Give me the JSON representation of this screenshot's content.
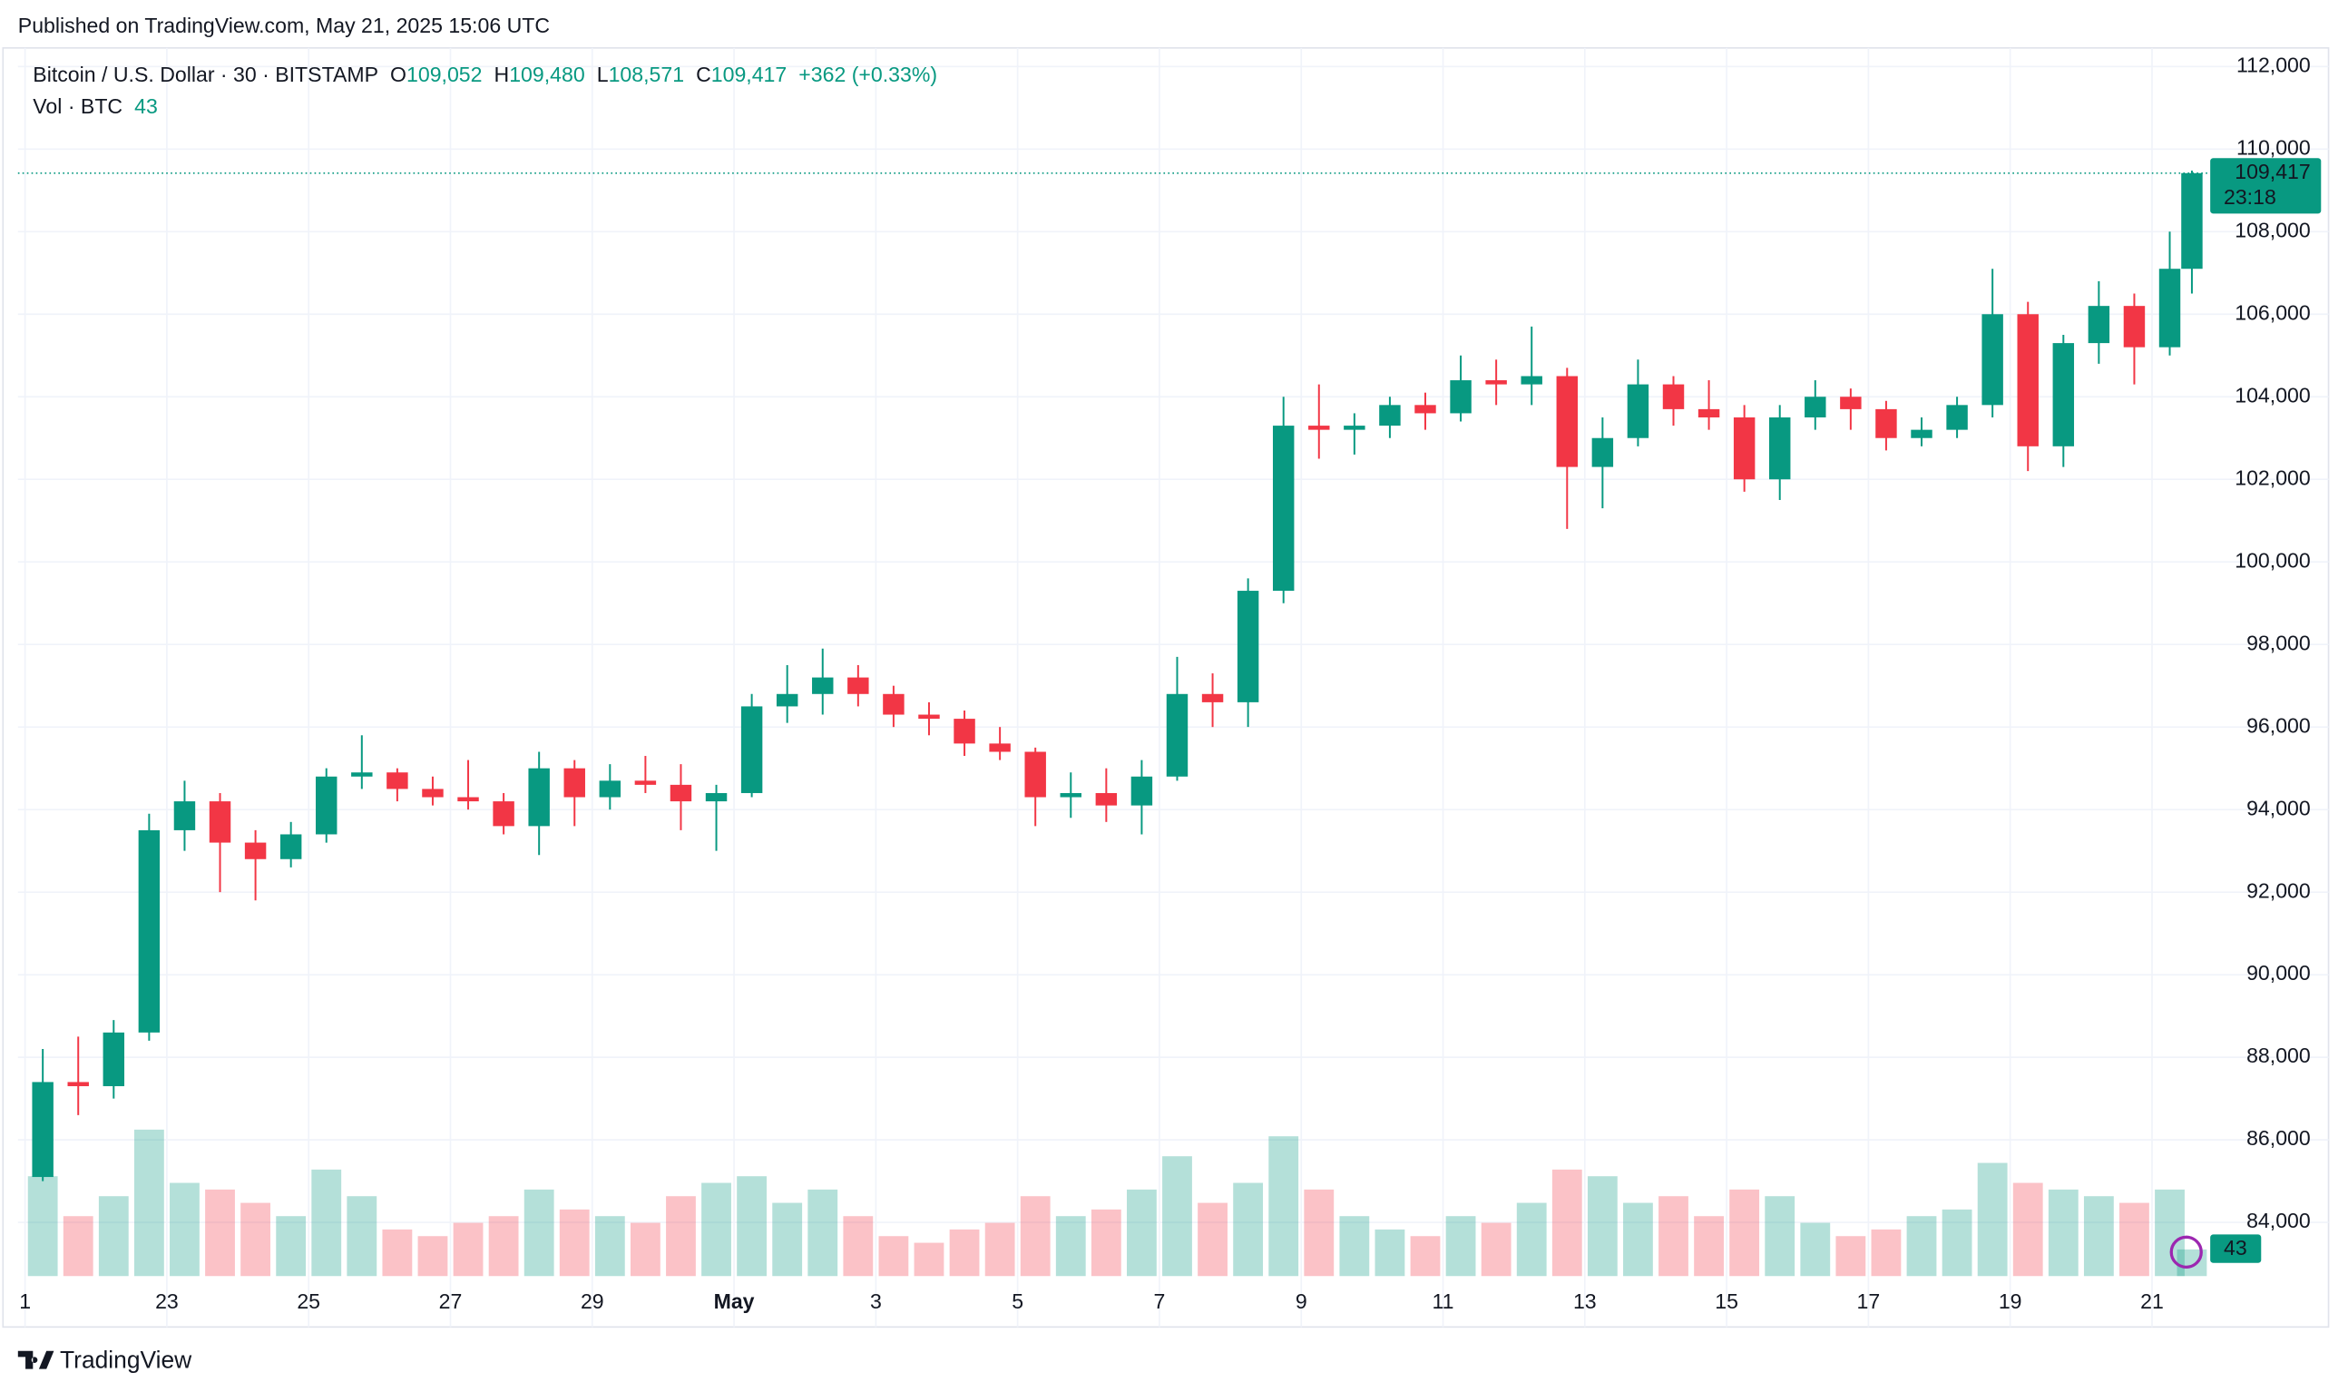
{
  "header": {
    "published": "Published on TradingView.com, May 21, 2025 15:06 UTC"
  },
  "legend": {
    "symbol": "Bitcoin / U.S. Dollar · 30 · BITSTAMP",
    "o_label": "O",
    "open": "109,052",
    "h_label": "H",
    "high": "109,480",
    "l_label": "L",
    "low": "108,571",
    "c_label": "C",
    "close": "109,417",
    "change": "+362 (+0.33%)",
    "vol_label": "Vol · BTC",
    "vol": "43"
  },
  "price_tag": {
    "countdown": "23:18"
  },
  "footer": {
    "brand": "TradingView"
  },
  "chart_data": {
    "type": "candlestick",
    "x": [
      0.25,
      0.75,
      1.25,
      1.75,
      2.25,
      2.75,
      3.25,
      3.75,
      4.25,
      4.75,
      5.25,
      5.75,
      6.25,
      6.75,
      7.25,
      7.75,
      8.25,
      8.75,
      9.25,
      9.75,
      10.25,
      10.75,
      11.25,
      11.75,
      12.25,
      12.75,
      13.25,
      13.75,
      14.25,
      14.75,
      15.25,
      15.75,
      16.25,
      16.75,
      17.25,
      17.75,
      18.25,
      18.75,
      19.25,
      19.75,
      20.25,
      20.75,
      21.25,
      21.75,
      22.25,
      22.75,
      23.25,
      23.75,
      24.25,
      24.75,
      25.25,
      25.75,
      26.25,
      26.75,
      27.25,
      27.75,
      28.25,
      28.75,
      29.25,
      29.75,
      30.25,
      30.5625
    ],
    "open": [
      85100,
      87400,
      87300,
      88600,
      93500,
      94200,
      93200,
      92800,
      93400,
      94800,
      94900,
      94500,
      94300,
      94200,
      93600,
      95000,
      94300,
      94700,
      94600,
      94200,
      94400,
      96500,
      96800,
      97200,
      96800,
      96300,
      96200,
      95600,
      95400,
      94300,
      94400,
      94100,
      94800,
      96800,
      96600,
      99300,
      103300,
      103200,
      103300,
      103800,
      103600,
      104400,
      104300,
      104500,
      102300,
      103000,
      104300,
      103700,
      103500,
      102000,
      103500,
      104000,
      103700,
      103000,
      103200,
      103800,
      106000,
      102800,
      105300,
      106200,
      105200,
      107100
    ],
    "high": [
      88200,
      88500,
      88900,
      93900,
      94700,
      94400,
      93500,
      93700,
      95000,
      95800,
      95000,
      94800,
      95200,
      94400,
      95400,
      95200,
      95100,
      95300,
      95100,
      94600,
      96800,
      97500,
      97900,
      97500,
      97000,
      96600,
      96400,
      96000,
      95500,
      94900,
      95000,
      95200,
      97700,
      97300,
      99600,
      104000,
      104300,
      103600,
      104000,
      104100,
      105000,
      104900,
      105700,
      104700,
      103500,
      104900,
      104500,
      104400,
      103800,
      103800,
      104400,
      104200,
      103900,
      103500,
      104000,
      107100,
      106300,
      105500,
      106800,
      106500,
      108000,
      109480
    ],
    "low": [
      85000,
      86600,
      87000,
      88400,
      93000,
      92000,
      91800,
      92600,
      93200,
      94500,
      94200,
      94100,
      94000,
      93400,
      92900,
      93600,
      94000,
      94400,
      93500,
      93000,
      94300,
      96100,
      96300,
      96500,
      96000,
      95800,
      95300,
      95200,
      93600,
      93800,
      93700,
      93400,
      94700,
      96000,
      96000,
      99000,
      102500,
      102600,
      103000,
      103200,
      103400,
      103800,
      103800,
      100800,
      101300,
      102800,
      103300,
      103200,
      101700,
      101500,
      103200,
      103200,
      102700,
      102800,
      103000,
      103500,
      102200,
      102300,
      104800,
      104300,
      105000,
      106500
    ],
    "close": [
      87400,
      87300,
      88600,
      93500,
      94200,
      93200,
      92800,
      93400,
      94800,
      94900,
      94500,
      94300,
      94200,
      93600,
      95000,
      94300,
      94700,
      94600,
      94200,
      94400,
      96500,
      96800,
      97200,
      96800,
      96300,
      96200,
      95600,
      95400,
      94300,
      94400,
      94100,
      94800,
      96800,
      96600,
      99300,
      103300,
      103200,
      103300,
      103800,
      103600,
      104400,
      104300,
      104500,
      102300,
      103000,
      104300,
      103700,
      103500,
      102000,
      103500,
      104000,
      103700,
      103000,
      103200,
      103800,
      106000,
      102800,
      105300,
      106200,
      105200,
      107100,
      109417
    ],
    "volume": [
      1500,
      900,
      1200,
      2200,
      1400,
      1300,
      1100,
      900,
      1600,
      1200,
      700,
      600,
      800,
      900,
      1300,
      1000,
      900,
      800,
      1200,
      1400,
      1500,
      1100,
      1300,
      900,
      600,
      500,
      700,
      800,
      1200,
      900,
      1000,
      1300,
      1800,
      1100,
      1400,
      2100,
      1300,
      900,
      700,
      600,
      900,
      800,
      1100,
      1600,
      1500,
      1100,
      1200,
      900,
      1300,
      1200,
      800,
      600,
      700,
      900,
      1000,
      1700,
      1400,
      1300,
      1200,
      1100,
      1300,
      400
    ],
    "up_color": "#089981",
    "down_color": "#f23645",
    "xlim": [
      -0.1,
      30.8
    ],
    "xticks": [
      {
        "value": 0,
        "label": "1"
      },
      {
        "value": 2,
        "label": "23"
      },
      {
        "value": 4,
        "label": "25"
      },
      {
        "value": 6,
        "label": "27"
      },
      {
        "value": 8,
        "label": "29"
      },
      {
        "value": 10,
        "label": "May"
      },
      {
        "value": 12,
        "label": "3"
      },
      {
        "value": 14,
        "label": "5"
      },
      {
        "value": 16,
        "label": "7"
      },
      {
        "value": 18,
        "label": "9"
      },
      {
        "value": 20,
        "label": "11"
      },
      {
        "value": 22,
        "label": "13"
      },
      {
        "value": 24,
        "label": "15"
      },
      {
        "value": 26,
        "label": "17"
      },
      {
        "value": 28,
        "label": "19"
      },
      {
        "value": 30,
        "label": "21"
      }
    ],
    "ylim": [
      82700,
      112450
    ],
    "yticks": [
      {
        "value": 84000,
        "label": "84,000"
      },
      {
        "value": 86000,
        "label": "86,000"
      },
      {
        "value": 88000,
        "label": "88,000"
      },
      {
        "value": 90000,
        "label": "90,000"
      },
      {
        "value": 92000,
        "label": "92,000"
      },
      {
        "value": 94000,
        "label": "94,000"
      },
      {
        "value": 96000,
        "label": "96,000"
      },
      {
        "value": 98000,
        "label": "98,000"
      },
      {
        "value": 100000,
        "label": "100,000"
      },
      {
        "value": 102000,
        "label": "102,000"
      },
      {
        "value": 104000,
        "label": "104,000"
      },
      {
        "value": 106000,
        "label": "106,000"
      },
      {
        "value": 108000,
        "label": "108,000"
      },
      {
        "value": 110000,
        "label": "110,000"
      },
      {
        "value": 112000,
        "label": "112,000"
      }
    ],
    "volume_ylim": [
      0,
      4500
    ],
    "grid": true
  }
}
